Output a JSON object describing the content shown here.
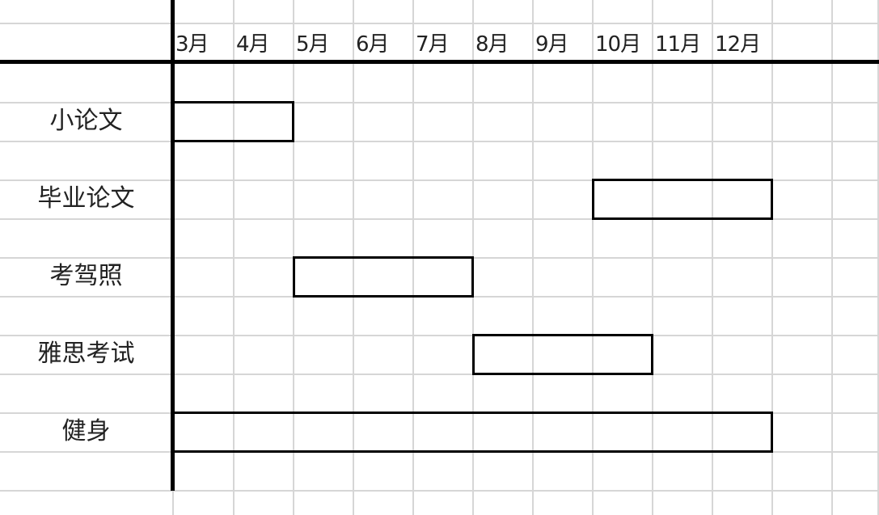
{
  "chart_data": {
    "type": "bar",
    "orientation": "horizontal",
    "style": "gantt",
    "categories": [
      "小论文",
      "毕业论文",
      "考驾照",
      "雅思考试",
      "健身"
    ],
    "months": [
      "3月",
      "4月",
      "5月",
      "6月",
      "7月",
      "8月",
      "9月",
      "10月",
      "11月",
      "12月"
    ],
    "tasks": [
      {
        "label": "小论文",
        "start": "3月",
        "end": "4月"
      },
      {
        "label": "毕业论文",
        "start": "10月",
        "end": "12月"
      },
      {
        "label": "考驾照",
        "start": "5月",
        "end": "7月"
      },
      {
        "label": "雅思考试",
        "start": "8月",
        "end": "10月"
      },
      {
        "label": "健身",
        "start": "3月",
        "end": "12月"
      }
    ],
    "grid": true,
    "colors": {
      "bar_border": "#000000",
      "bar_fill": "#ffffff",
      "grid": "#d6d6d6"
    }
  }
}
